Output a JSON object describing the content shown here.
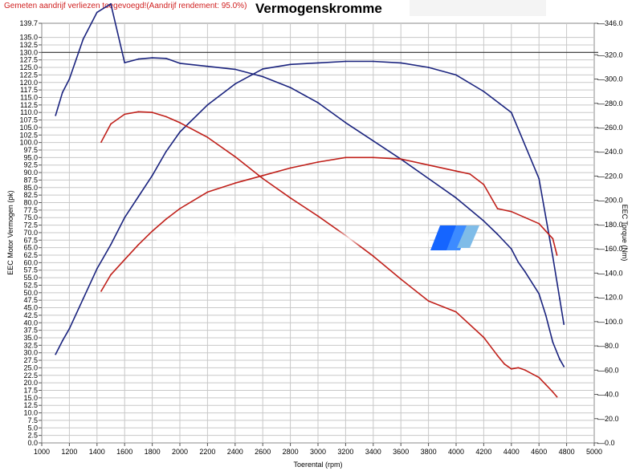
{
  "header": {
    "notice": "Gemeten aandrijf verliezen toegevoegd!(Aandrijf rendement: 95.0%)",
    "title": "Vermogenskromme"
  },
  "chart_data": {
    "type": "line",
    "title": "Vermogenskromme",
    "xlabel": "Toerental (rpm)",
    "ylabel": "EEC Motor Vermogen (pk)",
    "y2label": "EEC Torque (Nm)",
    "xlim": [
      1000,
      5000
    ],
    "ylim": [
      0,
      139.7
    ],
    "y2lim": [
      0,
      346
    ],
    "x_ticks": [
      "1000",
      "1200",
      "1400",
      "1600",
      "1800",
      "2000",
      "2200",
      "2400",
      "2600",
      "2800",
      "3000",
      "3200",
      "3400",
      "3600",
      "3800",
      "4000",
      "4200",
      "4400",
      "4600",
      "4800",
      "5000"
    ],
    "y_ticks": [
      "0.0",
      "2.5",
      "5.0",
      "7.5",
      "10.0",
      "12.5",
      "15.0",
      "17.5",
      "20.0",
      "22.5",
      "25.0",
      "27.5",
      "30.0",
      "32.5",
      "35.0",
      "37.5",
      "40.0",
      "42.5",
      "45.0",
      "47.5",
      "50.0",
      "52.5",
      "55.0",
      "57.5",
      "60.0",
      "62.5",
      "65.0",
      "67.5",
      "70.0",
      "72.5",
      "75.0",
      "77.5",
      "80.0",
      "82.5",
      "85.0",
      "87.5",
      "90.0",
      "92.5",
      "95.0",
      "97.5",
      "100.0",
      "102.5",
      "105.0",
      "107.5",
      "110.0",
      "112.5",
      "115.0",
      "117.5",
      "120.0",
      "122.5",
      "125.0",
      "127.5",
      "130.0",
      "132.5",
      "135.0",
      "139.7"
    ],
    "y2_ticks": [
      "0.0",
      "20.0",
      "40.0",
      "60.0",
      "80.0",
      "100.0",
      "120.0",
      "140.0",
      "160.0",
      "180.0",
      "200.0",
      "220.0",
      "240.0",
      "260.0",
      "280.0",
      "300.0",
      "320.0",
      "346.0"
    ],
    "reference_line": 130,
    "grid": true,
    "series": [
      {
        "color": "#1a237e",
        "axis": "torque",
        "x": [
          1100,
          1150,
          1200,
          1300,
          1400,
          1500,
          1600,
          1700,
          1800,
          1900,
          2000,
          2200,
          2400,
          2600,
          2800,
          3000,
          3200,
          3400,
          3600,
          3800,
          4000,
          4200,
          4300,
          4400,
          4450,
          4500,
          4600,
          4650,
          4700,
          4750,
          4780
        ],
        "y": [
          270,
          289,
          300,
          333,
          355,
          362,
          313.5,
          316.5,
          317.5,
          317,
          313,
          310.5,
          308,
          302,
          293,
          280.5,
          264,
          249,
          234,
          218,
          202,
          183,
          172,
          160,
          149,
          141,
          123,
          105,
          83,
          69,
          63
        ]
      },
      {
        "color": "#1a237e",
        "axis": "power",
        "x": [
          1100,
          1150,
          1200,
          1300,
          1400,
          1500,
          1600,
          1700,
          1800,
          1900,
          2000,
          2200,
          2400,
          2600,
          2800,
          3000,
          3200,
          3400,
          3600,
          3800,
          4000,
          4200,
          4400,
          4600,
          4650,
          4700,
          4750,
          4780
        ],
        "y": [
          29.5,
          34,
          38,
          48,
          58,
          66,
          75,
          82,
          89,
          97,
          103.5,
          112.5,
          119.5,
          124.5,
          126,
          126.5,
          127,
          127,
          126.5,
          125,
          122.5,
          117,
          110,
          88,
          75,
          62,
          48,
          39.5
        ]
      },
      {
        "color": "#c0201a",
        "axis": "torque",
        "x": [
          1430,
          1500,
          1600,
          1700,
          1800,
          1900,
          2000,
          2200,
          2400,
          2600,
          2800,
          3000,
          3200,
          3400,
          3600,
          3800,
          4000,
          4200,
          4300,
          4350,
          4400,
          4450,
          4500,
          4600,
          4650,
          4700,
          4730
        ],
        "y": [
          248,
          263,
          271,
          273,
          272.5,
          269,
          264,
          252,
          236,
          218,
          202,
          187,
          171,
          154,
          135,
          117,
          108,
          87,
          72,
          65,
          61,
          62,
          60,
          54,
          48,
          42,
          38
        ]
      },
      {
        "color": "#c0201a",
        "axis": "power",
        "x": [
          1430,
          1500,
          1600,
          1700,
          1800,
          1900,
          2000,
          2200,
          2400,
          2600,
          2800,
          3000,
          3200,
          3400,
          3600,
          3800,
          4000,
          4100,
          4200,
          4300,
          4400,
          4500,
          4600,
          4650,
          4700,
          4730
        ],
        "y": [
          50.5,
          56,
          61,
          66,
          70.5,
          74.5,
          78,
          83.5,
          86.5,
          89,
          91.5,
          93.5,
          95,
          95,
          94.5,
          92.5,
          90.5,
          89.5,
          86,
          78,
          77,
          75,
          73,
          70.5,
          68,
          62.5
        ]
      }
    ]
  }
}
